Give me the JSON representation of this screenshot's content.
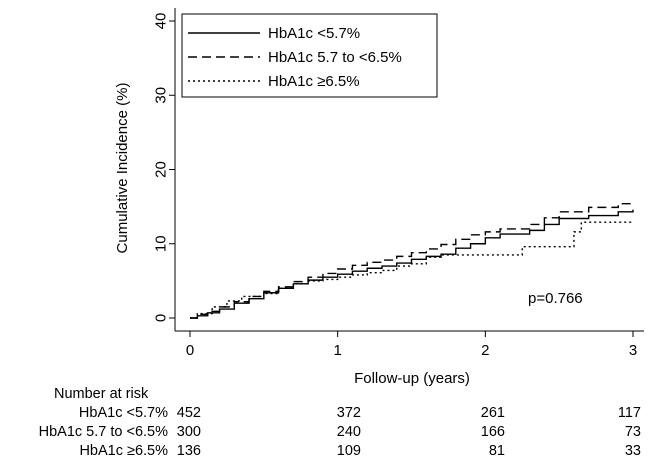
{
  "chart_data": {
    "type": "line",
    "subtype": "kaplan-meier cumulative incidence step curves",
    "xlabel": "Follow-up (years)",
    "ylabel": "Cumulative Incidence (%)",
    "xlim": [
      0,
      3
    ],
    "ylim": [
      0,
      40
    ],
    "x_ticks": [
      0,
      1,
      2,
      3
    ],
    "y_ticks": [
      0,
      10,
      20,
      30,
      40
    ],
    "grid": false,
    "legend_position": "top-left",
    "annotation": "p=0.766",
    "series": [
      {
        "name": "HbA1c <5.7%",
        "line_style": "solid",
        "points": [
          [
            0,
            0
          ],
          [
            0.05,
            0.3
          ],
          [
            0.12,
            0.7
          ],
          [
            0.2,
            1.2
          ],
          [
            0.3,
            2.0
          ],
          [
            0.4,
            2.6
          ],
          [
            0.5,
            3.4
          ],
          [
            0.6,
            4.0
          ],
          [
            0.7,
            4.6
          ],
          [
            0.8,
            5.1
          ],
          [
            0.9,
            5.5
          ],
          [
            1.0,
            5.9
          ],
          [
            1.1,
            6.3
          ],
          [
            1.2,
            6.7
          ],
          [
            1.3,
            7.0
          ],
          [
            1.4,
            7.4
          ],
          [
            1.5,
            7.9
          ],
          [
            1.6,
            8.3
          ],
          [
            1.7,
            8.6
          ],
          [
            1.8,
            9.4
          ],
          [
            1.9,
            10.0
          ],
          [
            2.0,
            10.8
          ],
          [
            2.1,
            11.3
          ],
          [
            2.3,
            11.8
          ],
          [
            2.4,
            12.6
          ],
          [
            2.5,
            13.4
          ],
          [
            2.7,
            13.8
          ],
          [
            2.9,
            14.3
          ],
          [
            3.0,
            14.6
          ]
        ]
      },
      {
        "name": "HbA1c 5.7 to <6.5%",
        "line_style": "dashed",
        "points": [
          [
            0,
            0
          ],
          [
            0.05,
            0.5
          ],
          [
            0.12,
            0.9
          ],
          [
            0.2,
            1.5
          ],
          [
            0.3,
            2.2
          ],
          [
            0.4,
            2.9
          ],
          [
            0.5,
            3.6
          ],
          [
            0.6,
            4.2
          ],
          [
            0.7,
            4.9
          ],
          [
            0.8,
            5.5
          ],
          [
            0.9,
            6.0
          ],
          [
            1.0,
            6.6
          ],
          [
            1.1,
            7.1
          ],
          [
            1.2,
            7.5
          ],
          [
            1.3,
            7.8
          ],
          [
            1.4,
            8.3
          ],
          [
            1.5,
            8.8
          ],
          [
            1.6,
            9.3
          ],
          [
            1.7,
            9.9
          ],
          [
            1.8,
            10.6
          ],
          [
            1.9,
            11.2
          ],
          [
            2.0,
            11.6
          ],
          [
            2.1,
            12.0
          ],
          [
            2.3,
            12.6
          ],
          [
            2.4,
            13.5
          ],
          [
            2.5,
            14.3
          ],
          [
            2.7,
            14.9
          ],
          [
            2.9,
            15.4
          ],
          [
            3.0,
            15.5
          ]
        ]
      },
      {
        "name": "HbA1c ≥6.5%",
        "line_style": "dotted",
        "points": [
          [
            0,
            0
          ],
          [
            0.05,
            0.6
          ],
          [
            0.15,
            1.5
          ],
          [
            0.25,
            2.3
          ],
          [
            0.35,
            2.9
          ],
          [
            0.5,
            3.3
          ],
          [
            0.6,
            4.0
          ],
          [
            0.7,
            4.6
          ],
          [
            0.8,
            5.0
          ],
          [
            0.9,
            5.2
          ],
          [
            1.0,
            5.5
          ],
          [
            1.1,
            5.8
          ],
          [
            1.2,
            6.1
          ],
          [
            1.3,
            6.4
          ],
          [
            1.4,
            7.0
          ],
          [
            1.5,
            7.3
          ],
          [
            1.6,
            8.2
          ],
          [
            1.7,
            8.5
          ],
          [
            2.0,
            8.5
          ],
          [
            2.25,
            9.6
          ],
          [
            2.55,
            9.6
          ],
          [
            2.6,
            11.6
          ],
          [
            2.65,
            12.9
          ],
          [
            3.0,
            13.0
          ]
        ]
      }
    ]
  },
  "risk_table": {
    "title": "Number at risk",
    "times": [
      0,
      1,
      2,
      3
    ],
    "rows": [
      {
        "label": "HbA1c <5.7%",
        "values": [
          "452",
          "372",
          "261",
          "117"
        ]
      },
      {
        "label": "HbA1c 5.7 to <6.5%",
        "values": [
          "300",
          "240",
          "166",
          "73"
        ]
      },
      {
        "label": "HbA1c ≥6.5%",
        "values": [
          "136",
          "109",
          "81",
          "33"
        ]
      }
    ]
  }
}
